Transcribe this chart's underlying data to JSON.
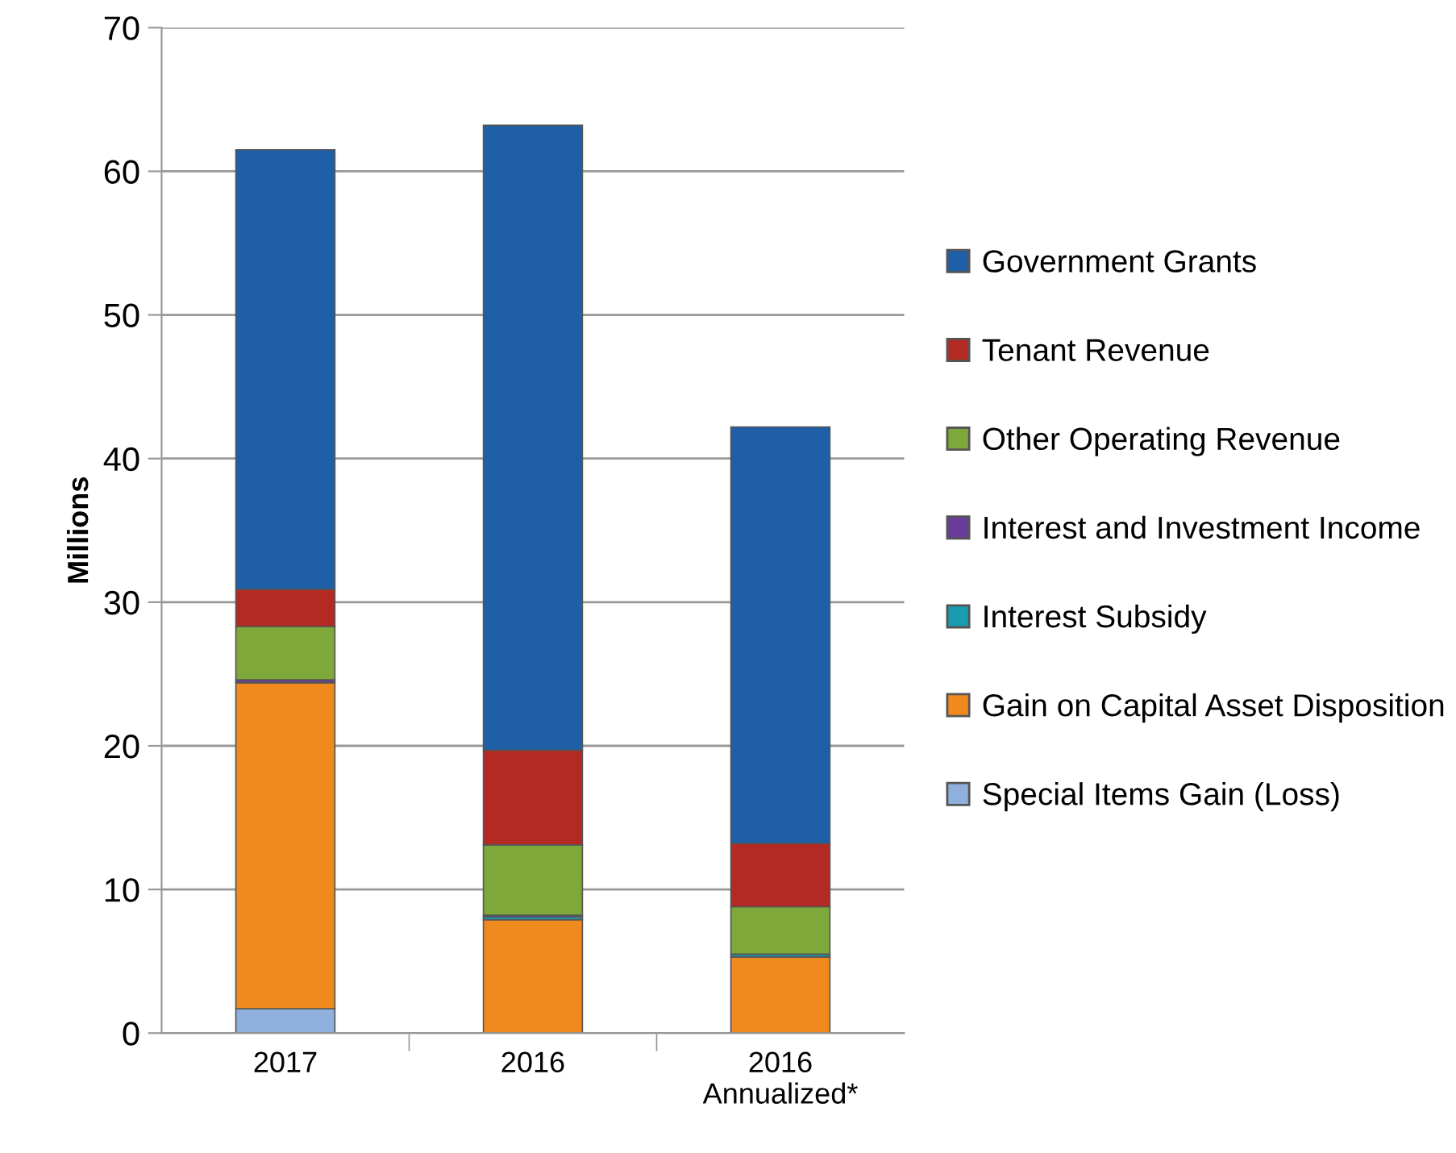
{
  "chart_data": {
    "type": "bar",
    "stacked": true,
    "ylabel": "Millions",
    "categories": [
      "2017",
      "2016",
      "2016\nAnnualized*"
    ],
    "series": [
      {
        "name": "Special Items Gain (Loss)",
        "color": "#8fb0dc",
        "values": [
          1.7,
          0,
          0
        ]
      },
      {
        "name": "Gain on Capital Asset Disposition",
        "color": "#f08a1e",
        "values": [
          22.7,
          7.9,
          5.3
        ]
      },
      {
        "name": "Interest Subsidy",
        "color": "#1a9cb0",
        "values": [
          0,
          0.2,
          0.2
        ]
      },
      {
        "name": "Interest and Investment Income",
        "color": "#6a3d9a",
        "values": [
          0.2,
          0.1,
          0
        ]
      },
      {
        "name": "Other Operating Revenue",
        "color": "#7ea83a",
        "values": [
          3.7,
          4.9,
          3.3
        ]
      },
      {
        "name": "Tenant Revenue",
        "color": "#b22a22",
        "values": [
          2.6,
          6.6,
          4.4
        ]
      },
      {
        "name": "Government Grants",
        "color": "#1f5fa8",
        "values": [
          30.6,
          43.5,
          29.0
        ]
      }
    ],
    "ylim": [
      0,
      70
    ],
    "yticks": [
      0,
      10,
      20,
      30,
      40,
      50,
      60,
      70
    ],
    "grid": "y",
    "legend": "right"
  }
}
